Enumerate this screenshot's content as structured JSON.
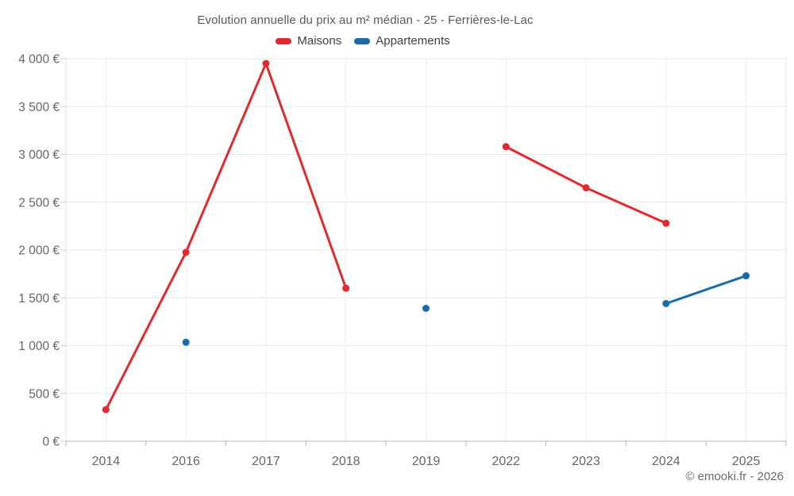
{
  "header": {
    "title": "Evolution annuelle du prix au m² médian - 25 - Ferrières-le-Lac"
  },
  "footer": {
    "copyright": "© emooki.fr - 2026"
  },
  "colors": {
    "maisons": "#e12a30",
    "appartements": "#1a6ca8",
    "grid_horizontal": "#e7e7e7",
    "grid_vertical": "#efefef",
    "grid_boundary": "#e2e2e2",
    "axis_line": "#b5b5b5",
    "y_tick": "#cfcfcf",
    "tick_text": "#666666",
    "title_text": "#595959",
    "legend_text": "#3f3f3f"
  },
  "chart_data": {
    "type": "line",
    "title": "Evolution annuelle du prix au m² médian - 25 - Ferrières-le-Lac",
    "xlabel": "",
    "ylabel": "",
    "categories": [
      "2014",
      "2016",
      "2017",
      "2018",
      "2019",
      "2022",
      "2023",
      "2024",
      "2025"
    ],
    "series": [
      {
        "name": "Maisons",
        "color": "#e12a30",
        "values": [
          330,
          1975,
          3950,
          1600,
          null,
          3080,
          2650,
          2280,
          null
        ]
      },
      {
        "name": "Appartements",
        "color": "#1a6ca8",
        "values": [
          null,
          1035,
          null,
          null,
          1390,
          null,
          null,
          1440,
          1730
        ]
      }
    ],
    "ylim": [
      0,
      4000
    ],
    "ytick_step": 500,
    "yticks": [
      {
        "value": 0,
        "label": "0 €"
      },
      {
        "value": 500,
        "label": "500 €"
      },
      {
        "value": 1000,
        "label": "1 000 €"
      },
      {
        "value": 1500,
        "label": "1 500 €"
      },
      {
        "value": 2000,
        "label": "2 000 €"
      },
      {
        "value": 2500,
        "label": "2 500 €"
      },
      {
        "value": 3000,
        "label": "3 000 €"
      },
      {
        "value": 3500,
        "label": "3 500 €"
      },
      {
        "value": 4000,
        "label": "4 000 €"
      }
    ],
    "grid": true,
    "legend_position": "top",
    "gaps_note": "null = no data for that year; line breaks at gaps, isolated points drawn as dots"
  }
}
